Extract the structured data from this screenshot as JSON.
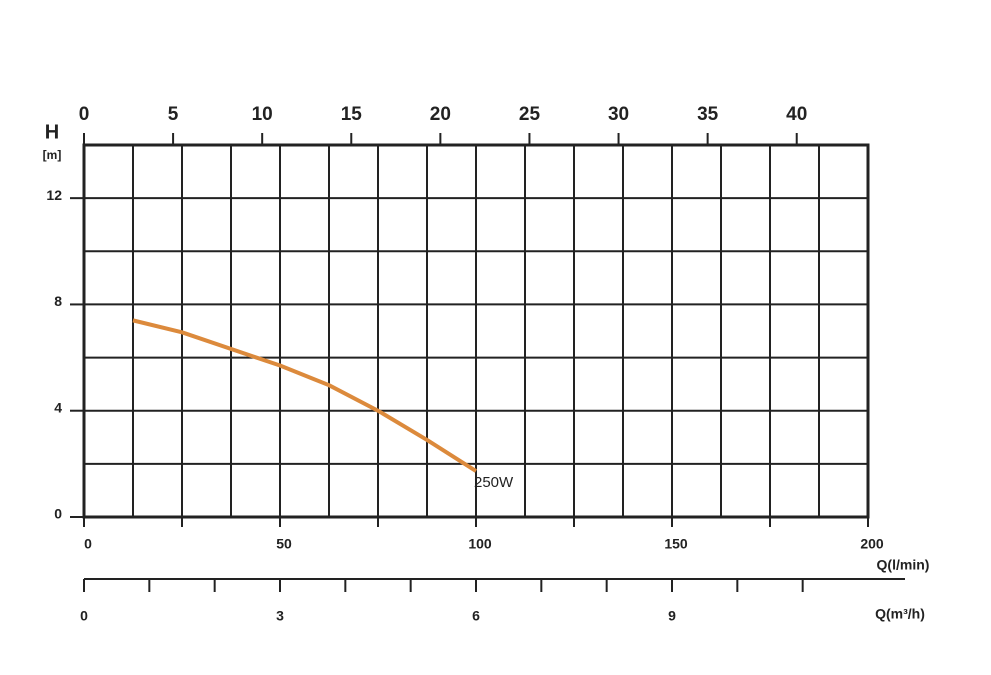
{
  "chart_data": {
    "type": "line",
    "ylabel": "H",
    "yunit": "[m]",
    "ylim": [
      0,
      14
    ],
    "yticks": [
      0,
      4,
      8,
      12
    ],
    "ygrid": [
      0,
      2,
      4,
      6,
      8,
      10,
      12,
      14
    ],
    "xlabel": "Q(l/min)",
    "xlim": [
      0,
      200
    ],
    "xticks": [
      0,
      50,
      100,
      150,
      200
    ],
    "xminorticks": [
      25,
      75,
      125,
      175
    ],
    "xgrid": [
      0,
      12.5,
      25,
      37.5,
      50,
      62.5,
      75,
      87.5,
      100,
      112.5,
      125,
      137.5,
      150,
      162.5,
      175,
      187.5,
      200
    ],
    "x2lim": [
      0,
      44
    ],
    "x2ticks": [
      0,
      5,
      10,
      15,
      20,
      25,
      30,
      35,
      40
    ],
    "x3label": "Q(m³/h)",
    "x3lim": [
      0,
      12
    ],
    "x3ticks": [
      0,
      3,
      6,
      9
    ],
    "x3minorticks": [
      1,
      2,
      4,
      5,
      7,
      8,
      10,
      11
    ],
    "series": [
      {
        "name": "250W",
        "color": "#dc8a3c",
        "x": [
          12.5,
          25,
          43,
          50,
          62.5,
          75,
          87.5,
          100
        ],
        "values": [
          7.4,
          6.95,
          6.05,
          5.7,
          4.96,
          4.0,
          2.9,
          1.73
        ]
      }
    ]
  }
}
